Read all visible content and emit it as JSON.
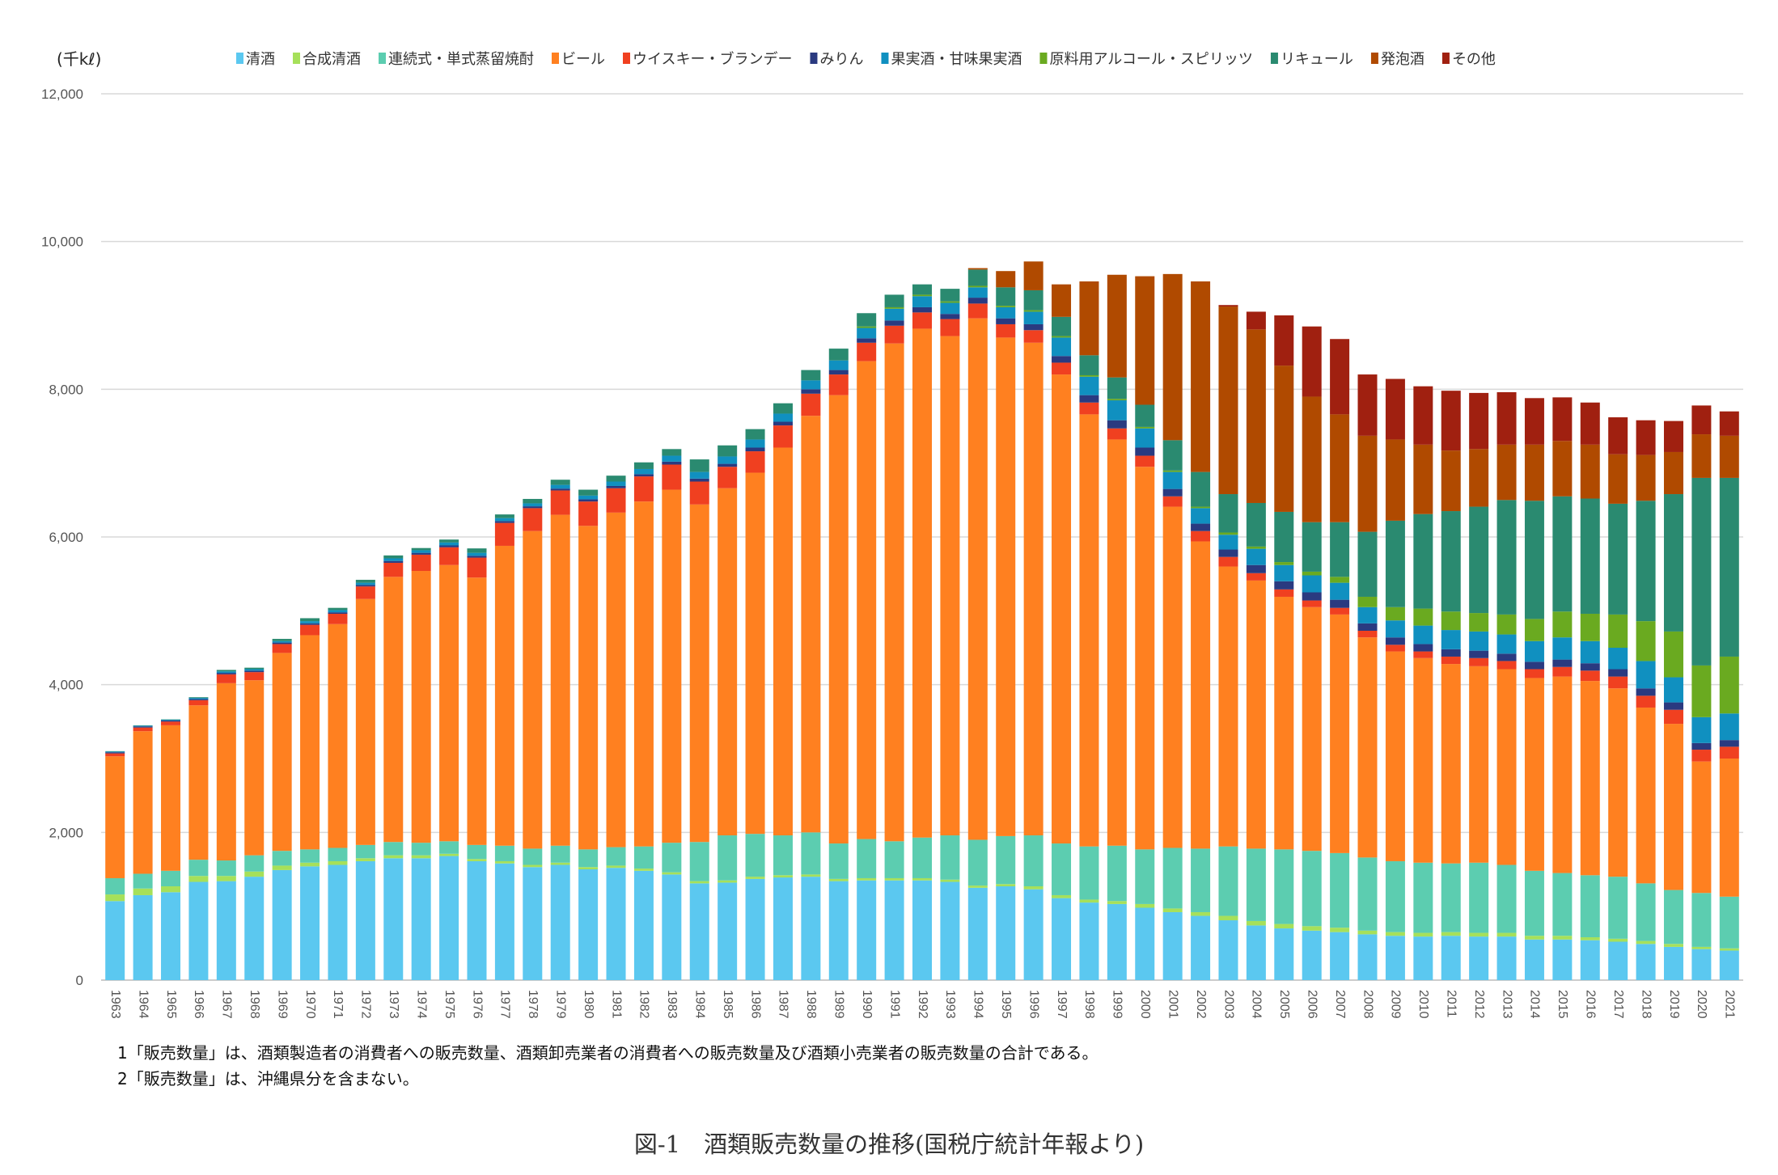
{
  "chart_data": {
    "type": "bar",
    "stacked": true,
    "unit_label": "(千kℓ)",
    "ylim": [
      0,
      12000
    ],
    "yticks": [
      "0",
      "2,000",
      "4,000",
      "6,000",
      "8,000",
      "10,000",
      "12,000"
    ],
    "grid": true,
    "legend_position": "top",
    "categories": [
      "1963",
      "1964",
      "1965",
      "1966",
      "1967",
      "1968",
      "1969",
      "1970",
      "1971",
      "1972",
      "1973",
      "1974",
      "1975",
      "1976",
      "1977",
      "1978",
      "1979",
      "1980",
      "1981",
      "1982",
      "1983",
      "1984",
      "1985",
      "1986",
      "1987",
      "1988",
      "1989",
      "1990",
      "1991",
      "1992",
      "1993",
      "1994",
      "1995",
      "1996",
      "1997",
      "1998",
      "1999",
      "2000",
      "2001",
      "2002",
      "2003",
      "2004",
      "2005",
      "2006",
      "2007",
      "2008",
      "2009",
      "2010",
      "2011",
      "2012",
      "2013",
      "2014",
      "2015",
      "2016",
      "2017",
      "2018",
      "2019",
      "2020",
      "2021"
    ],
    "series_names": [
      "清酒",
      "合成清酒",
      "連続式・単式蒸留焼酎",
      "ビール",
      "ウイスキー・ブランデー",
      "みりん",
      "果実酒・甘味果実酒",
      "原料用アルコール・スピリッツ",
      "リキュール",
      "発泡酒",
      "その他"
    ],
    "series_colors": [
      "#5BC8F0",
      "#A6E05A",
      "#5CCDB0",
      "#FF8020",
      "#F04020",
      "#2A3A80",
      "#1090C0",
      "#6AAA20",
      "#2A8A70",
      "#B04A00",
      "#A02010"
    ],
    "rows": [
      [
        1070,
        90,
        220,
        1650,
        40,
        15,
        10,
        0,
        5,
        0,
        0
      ],
      [
        1150,
        90,
        200,
        1930,
        50,
        15,
        10,
        0,
        5,
        0,
        0
      ],
      [
        1190,
        80,
        210,
        1970,
        50,
        15,
        10,
        0,
        5,
        0,
        0
      ],
      [
        1330,
        80,
        220,
        2090,
        70,
        15,
        15,
        0,
        10,
        0,
        0
      ],
      [
        1340,
        70,
        210,
        2400,
        120,
        20,
        20,
        0,
        20,
        0,
        0
      ],
      [
        1400,
        70,
        220,
        2370,
        110,
        20,
        20,
        0,
        20,
        0,
        0
      ],
      [
        1490,
        60,
        200,
        2680,
        120,
        20,
        20,
        0,
        30,
        0,
        0
      ],
      [
        1540,
        50,
        180,
        2900,
        140,
        20,
        30,
        0,
        40,
        0,
        0
      ],
      [
        1560,
        50,
        180,
        3030,
        140,
        20,
        30,
        0,
        30,
        0,
        0
      ],
      [
        1610,
        40,
        180,
        3330,
        170,
        20,
        30,
        0,
        40,
        0,
        0
      ],
      [
        1650,
        40,
        180,
        3590,
        190,
        25,
        35,
        0,
        40,
        0,
        0
      ],
      [
        1650,
        40,
        170,
        3680,
        220,
        25,
        35,
        0,
        30,
        0,
        0
      ],
      [
        1680,
        30,
        170,
        3740,
        240,
        25,
        40,
        0,
        40,
        0,
        0
      ],
      [
        1610,
        30,
        190,
        3620,
        270,
        25,
        40,
        0,
        60,
        0,
        0
      ],
      [
        1580,
        30,
        210,
        4060,
        310,
        25,
        40,
        0,
        50,
        0,
        0
      ],
      [
        1530,
        30,
        220,
        4300,
        310,
        25,
        40,
        0,
        60,
        0,
        0
      ],
      [
        1560,
        30,
        230,
        4480,
        330,
        25,
        50,
        0,
        70,
        0,
        0
      ],
      [
        1500,
        30,
        240,
        4380,
        330,
        30,
        50,
        0,
        80,
        0,
        0
      ],
      [
        1520,
        30,
        250,
        4530,
        330,
        30,
        60,
        0,
        80,
        0,
        0
      ],
      [
        1480,
        30,
        300,
        4670,
        340,
        30,
        70,
        0,
        90,
        0,
        0
      ],
      [
        1430,
        30,
        400,
        4780,
        340,
        40,
        80,
        0,
        90,
        0,
        0
      ],
      [
        1310,
        30,
        530,
        4570,
        310,
        40,
        90,
        0,
        170,
        0,
        0
      ],
      [
        1320,
        30,
        610,
        4700,
        290,
        40,
        100,
        0,
        150,
        0,
        0
      ],
      [
        1370,
        30,
        580,
        4890,
        290,
        50,
        110,
        0,
        140,
        0,
        0
      ],
      [
        1390,
        30,
        540,
        5250,
        300,
        50,
        110,
        0,
        140,
        0,
        0
      ],
      [
        1400,
        30,
        570,
        5640,
        300,
        60,
        120,
        0,
        140,
        0,
        0
      ],
      [
        1340,
        30,
        480,
        6070,
        280,
        60,
        130,
        0,
        160,
        0,
        0
      ],
      [
        1350,
        30,
        530,
        6470,
        250,
        60,
        140,
        20,
        180,
        0,
        0
      ],
      [
        1350,
        30,
        500,
        6740,
        240,
        70,
        160,
        20,
        170,
        0,
        0
      ],
      [
        1350,
        30,
        550,
        6890,
        220,
        70,
        150,
        20,
        140,
        0,
        0
      ],
      [
        1330,
        30,
        600,
        6760,
        230,
        70,
        150,
        20,
        170,
        0,
        0
      ],
      [
        1250,
        30,
        620,
        7060,
        200,
        80,
        140,
        20,
        220,
        20,
        0
      ],
      [
        1270,
        30,
        650,
        6750,
        180,
        80,
        150,
        20,
        250,
        220,
        0
      ],
      [
        1230,
        40,
        690,
        6670,
        170,
        80,
        170,
        20,
        270,
        390,
        0
      ],
      [
        1110,
        40,
        700,
        6350,
        160,
        90,
        250,
        20,
        260,
        440,
        0
      ],
      [
        1050,
        40,
        720,
        5850,
        160,
        100,
        250,
        20,
        270,
        1000,
        0
      ],
      [
        1030,
        40,
        750,
        5500,
        150,
        110,
        270,
        20,
        290,
        1390,
        0
      ],
      [
        980,
        50,
        740,
        5180,
        150,
        110,
        260,
        20,
        300,
        1740,
        0
      ],
      [
        920,
        50,
        820,
        4620,
        140,
        100,
        230,
        20,
        410,
        2250,
        0
      ],
      [
        870,
        50,
        860,
        4160,
        140,
        100,
        210,
        20,
        470,
        2580,
        0
      ],
      [
        810,
        60,
        940,
        3790,
        130,
        100,
        200,
        30,
        520,
        2540,
        20
      ],
      [
        740,
        60,
        980,
        3630,
        100,
        110,
        220,
        30,
        590,
        2350,
        240
      ],
      [
        700,
        60,
        1010,
        3420,
        100,
        110,
        220,
        40,
        680,
        1980,
        680
      ],
      [
        670,
        60,
        1020,
        3300,
        90,
        110,
        230,
        50,
        670,
        1700,
        950
      ],
      [
        650,
        60,
        1010,
        3230,
        90,
        110,
        230,
        80,
        740,
        1460,
        1020
      ],
      [
        620,
        50,
        990,
        2980,
        90,
        100,
        220,
        140,
        880,
        1300,
        830
      ],
      [
        600,
        50,
        960,
        2840,
        90,
        100,
        230,
        180,
        1170,
        1100,
        820
      ],
      [
        590,
        50,
        950,
        2770,
        90,
        100,
        250,
        230,
        1280,
        940,
        790
      ],
      [
        600,
        50,
        930,
        2700,
        100,
        100,
        260,
        250,
        1360,
        820,
        810
      ],
      [
        590,
        50,
        950,
        2660,
        110,
        100,
        260,
        250,
        1440,
        780,
        760
      ],
      [
        590,
        50,
        920,
        2650,
        110,
        100,
        260,
        270,
        1550,
        750,
        710
      ],
      [
        550,
        50,
        880,
        2610,
        120,
        100,
        280,
        300,
        1600,
        760,
        630
      ],
      [
        550,
        50,
        850,
        2660,
        130,
        100,
        300,
        350,
        1560,
        750,
        590
      ],
      [
        540,
        40,
        840,
        2630,
        140,
        100,
        300,
        370,
        1560,
        730,
        570
      ],
      [
        520,
        40,
        840,
        2550,
        160,
        100,
        290,
        450,
        1500,
        670,
        500
      ],
      [
        490,
        40,
        780,
        2380,
        160,
        100,
        370,
        540,
        1630,
        620,
        470
      ],
      [
        450,
        40,
        730,
        2250,
        190,
        100,
        340,
        620,
        1860,
        570,
        420
      ],
      [
        420,
        30,
        730,
        1780,
        160,
        90,
        350,
        700,
        2540,
        590,
        390
      ],
      [
        400,
        30,
        700,
        1870,
        160,
        90,
        360,
        770,
        2420,
        570,
        330
      ]
    ]
  },
  "notes": [
    "1「販売数量」は、酒類製造者の消費者への販売数量、酒類卸売業者の消費者への販売数量及び酒類小売業者の販売数量の合計である。",
    "2「販売数量」は、沖縄県分を含まない。"
  ],
  "caption": "図-1　酒類販売数量の推移(国税庁統計年報より)"
}
